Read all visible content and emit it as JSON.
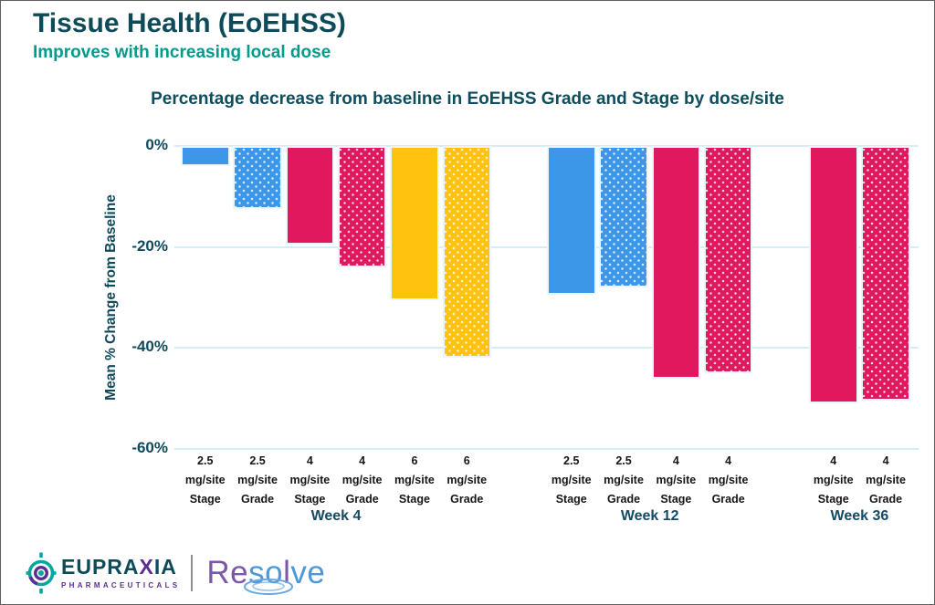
{
  "header": {
    "title": "Tissue Health (EoEHSS)",
    "subtitle": "Improves with increasing local dose"
  },
  "chart_data": {
    "type": "bar",
    "title": "Percentage decrease from baseline in EoEHSS Grade and Stage by dose/site",
    "xlabel": "",
    "ylabel": "Mean % Change from Baseline",
    "ylim": [
      -60,
      0
    ],
    "yticks": [
      {
        "value": 0,
        "label": "0%"
      },
      {
        "value": -20,
        "label": "-20%"
      },
      {
        "value": -40,
        "label": "-40%"
      },
      {
        "value": -60,
        "label": "-60%"
      }
    ],
    "grid": true,
    "legend": false,
    "gridline_color": "#d5edf7",
    "dose_colors": {
      "2.5": "#3d97e8",
      "4": "#e0195e",
      "6": "#ffc20e"
    },
    "groups": [
      {
        "label": "Week 4",
        "bars": [
          {
            "dose": "2.5",
            "unit": "mg/site",
            "metric": "Stage",
            "value": -4,
            "pattern": "solid",
            "color": "#3d97e8"
          },
          {
            "dose": "2.5",
            "unit": "mg/site",
            "metric": "Grade",
            "value": -12.5,
            "pattern": "dotted",
            "color": "#3d97e8"
          },
          {
            "dose": "4",
            "unit": "mg/site",
            "metric": "Stage",
            "value": -19.5,
            "pattern": "solid",
            "color": "#e0195e"
          },
          {
            "dose": "4",
            "unit": "mg/site",
            "metric": "Grade",
            "value": -24,
            "pattern": "dotted",
            "color": "#e0195e"
          },
          {
            "dose": "6",
            "unit": "mg/site",
            "metric": "Stage",
            "value": -30.5,
            "pattern": "solid",
            "color": "#ffc20e"
          },
          {
            "dose": "6",
            "unit": "mg/site",
            "metric": "Grade",
            "value": -42,
            "pattern": "dotted",
            "color": "#ffc20e"
          }
        ]
      },
      {
        "label": "Week 12",
        "bars": [
          {
            "dose": "2.5",
            "unit": "mg/site",
            "metric": "Stage",
            "value": -29.5,
            "pattern": "solid",
            "color": "#3d97e8"
          },
          {
            "dose": "2.5",
            "unit": "mg/site",
            "metric": "Grade",
            "value": -28,
            "pattern": "dotted",
            "color": "#3d97e8"
          },
          {
            "dose": "4",
            "unit": "mg/site",
            "metric": "Stage",
            "value": -46,
            "pattern": "solid",
            "color": "#e0195e"
          },
          {
            "dose": "4",
            "unit": "mg/site",
            "metric": "Grade",
            "value": -45,
            "pattern": "dotted",
            "color": "#e0195e"
          }
        ]
      },
      {
        "label": "Week 36",
        "bars": [
          {
            "dose": "4",
            "unit": "mg/site",
            "metric": "Stage",
            "value": -51,
            "pattern": "solid",
            "color": "#e0195e"
          },
          {
            "dose": "4",
            "unit": "mg/site",
            "metric": "Grade",
            "value": -50.5,
            "pattern": "dotted",
            "color": "#e0195e"
          }
        ]
      }
    ]
  },
  "footer": {
    "brand_parts": [
      {
        "text": "EUPRA",
        "color": "#0d4b58"
      },
      {
        "text": "X",
        "color": "#5b2e91"
      },
      {
        "text": "IA",
        "color": "#0d4b58"
      }
    ],
    "brand_sub": "PHARMACEUTICALS",
    "product_letters": [
      {
        "ch": "R",
        "color": "#7a58a8"
      },
      {
        "ch": "e",
        "color": "#7a58a8"
      },
      {
        "ch": "s",
        "color": "#4e97d9"
      },
      {
        "ch": "o",
        "color": "#4e97d9"
      },
      {
        "ch": "l",
        "color": "#7a58a8"
      },
      {
        "ch": "v",
        "color": "#4e97d9"
      },
      {
        "ch": "e",
        "color": "#4e97d9"
      }
    ],
    "ripple_color": "#6aa9e0"
  }
}
